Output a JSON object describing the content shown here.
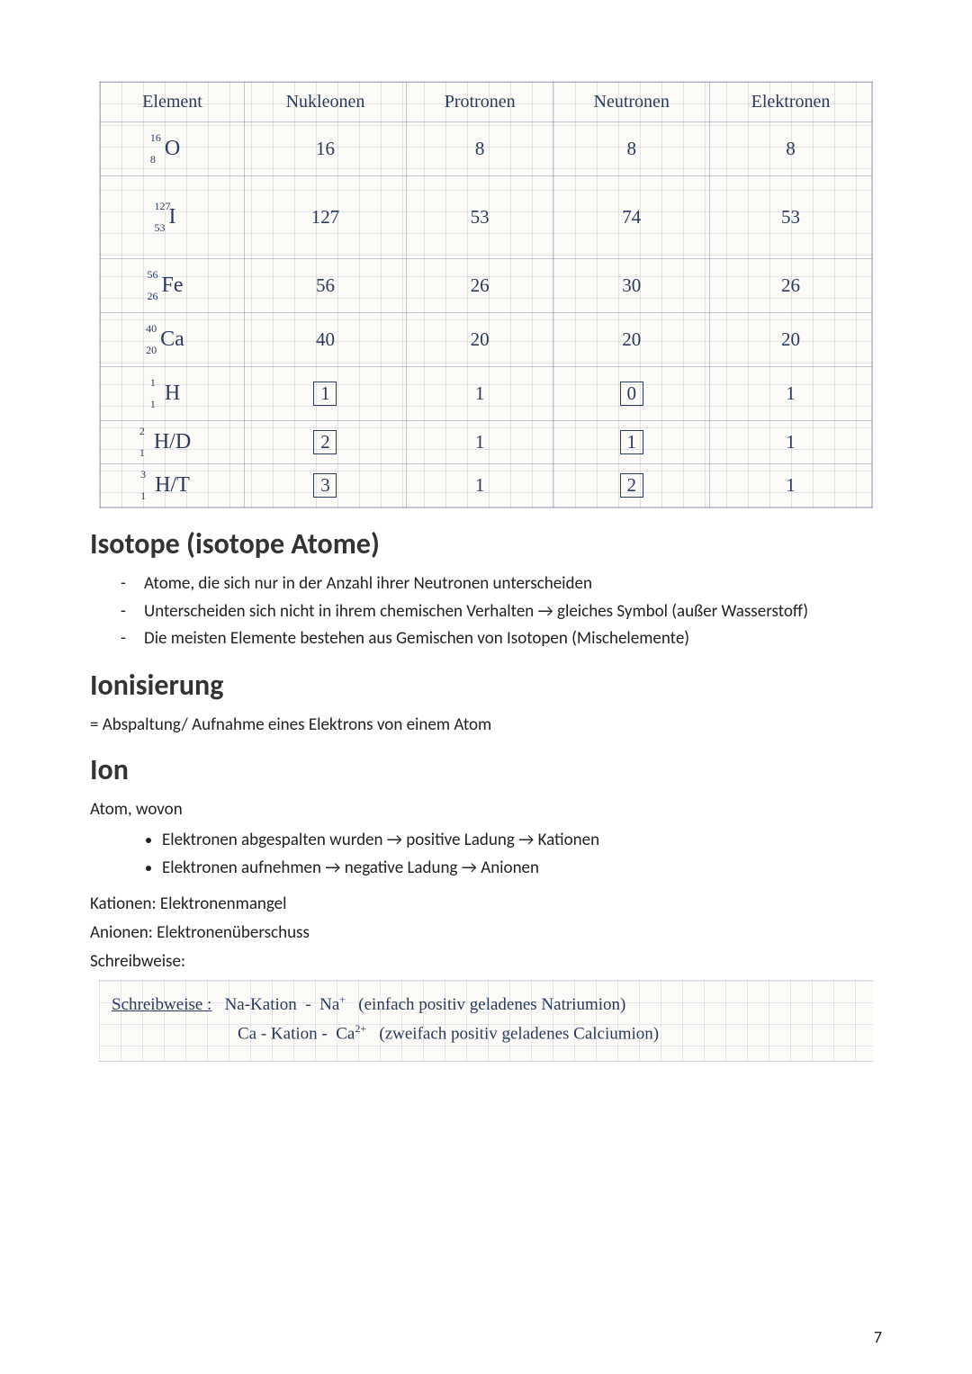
{
  "table": {
    "headers": [
      "Element",
      "Nukleonen",
      "Protronen",
      "Neutronen",
      "Elektronen"
    ],
    "rows": [
      {
        "mass": "16",
        "num": "8",
        "sym": "O",
        "nukleonen": "16",
        "protonen": "8",
        "neutronen": "8",
        "elektronen": "8",
        "tall": false,
        "box_nukl": false,
        "box_neu": false
      },
      {
        "mass": "127",
        "num": "53",
        "sym": "I",
        "nukleonen": "127",
        "protonen": "53",
        "neutronen": "74",
        "elektronen": "53",
        "tall": true,
        "box_nukl": false,
        "box_neu": false
      },
      {
        "mass": "56",
        "num": "26",
        "sym": "Fe",
        "nukleonen": "56",
        "protonen": "26",
        "neutronen": "30",
        "elektronen": "26",
        "tall": false,
        "box_nukl": false,
        "box_neu": false
      },
      {
        "mass": "40",
        "num": "20",
        "sym": "Ca",
        "nukleonen": "40",
        "protonen": "20",
        "neutronen": "20",
        "elektronen": "20",
        "tall": false,
        "box_nukl": false,
        "box_neu": false
      },
      {
        "mass": "1",
        "num": "1",
        "sym": "H",
        "nukleonen": "1",
        "protonen": "1",
        "neutronen": "0",
        "elektronen": "1",
        "tall": false,
        "box_nukl": true,
        "box_neu": true
      },
      {
        "mass": "2",
        "num": "1",
        "sym": "H/D",
        "nukleonen": "2",
        "protonen": "1",
        "neutronen": "1",
        "elektronen": "1",
        "tall": false,
        "box_nukl": true,
        "box_neu": true,
        "short": true
      },
      {
        "mass": "3",
        "num": "1",
        "sym": "H/T",
        "nukleonen": "3",
        "protonen": "1",
        "neutronen": "2",
        "elektronen": "1",
        "tall": false,
        "box_nukl": true,
        "box_neu": true,
        "short": true
      }
    ]
  },
  "isotope": {
    "title": "Isotope (isotope Atome)",
    "items": [
      "Atome, die sich nur in der Anzahl ihrer Neutronen unterscheiden",
      "Unterscheiden sich nicht in ihrem chemischen Verhalten → gleiches Symbol (außer Wasserstoff)",
      "Die meisten Elemente bestehen aus Gemischen von Isotopen (Mischelemente)"
    ]
  },
  "ionisierung": {
    "title": "Ionisierung",
    "def": "= Abspaltung/ Aufnahme eines Elektrons von einem Atom"
  },
  "ion": {
    "title": "Ion",
    "intro": "Atom, wovon",
    "items": [
      "Elektronen abgespalten wurden → positive Ladung → Kationen",
      "Elektronen aufnehmen → negative Ladung → Anionen"
    ],
    "kat": "Kationen: Elektronenmangel",
    "an": "Anionen: Elektronenüberschuss",
    "schreib_label": "Schreibweise:"
  },
  "notation": {
    "prefix": "Schreibweise :",
    "line1_a": "Na-Kation",
    "line1_b": "Na",
    "line1_sup": "+",
    "line1_c": "(einfach positiv geladenes Natriumion)",
    "line2_a": "Ca - Kation",
    "line2_b": "Ca",
    "line2_sup": "2+",
    "line2_c": "(zweifach positiv geladenes Calciumion)"
  },
  "page": "7",
  "style": {
    "ink_color": "#2a3a5a",
    "heading_color": "#333333",
    "body_color": "#222222",
    "grid_color": "rgba(120,140,170,0.22)",
    "bg": "#ffffff",
    "heading_fontsize": 32,
    "body_fontsize": 19,
    "table_fontsize": 21
  }
}
